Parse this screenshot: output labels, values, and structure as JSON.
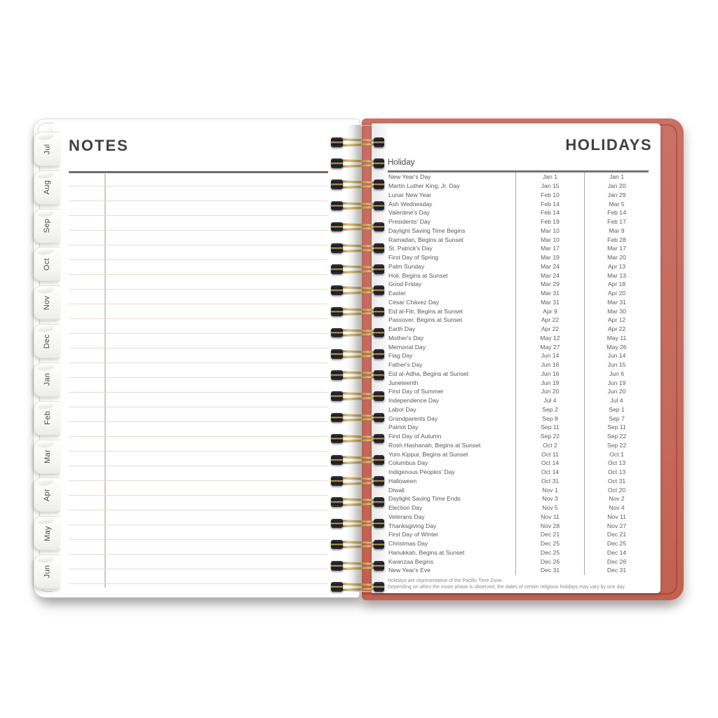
{
  "left_page": {
    "title": "NOTES",
    "tabs": [
      "Jul",
      "Aug",
      "Sep",
      "Oct",
      "Nov",
      "Dec",
      "Jan",
      "Feb",
      "Mar",
      "Apr",
      "May",
      "Jun"
    ]
  },
  "right_page": {
    "title": "HOLIDAYS",
    "column_header": "Holiday",
    "rows": [
      [
        "New Year's Day",
        "Jan 1",
        "Jan 1"
      ],
      [
        "Martin Luther King, Jr. Day",
        "Jan 15",
        "Jan 20"
      ],
      [
        "Lunar New Year",
        "Feb 10",
        "Jan 29"
      ],
      [
        "Ash Wednesday",
        "Feb 14",
        "Mar 5"
      ],
      [
        "Valentine's Day",
        "Feb 14",
        "Feb 14"
      ],
      [
        "Presidents' Day",
        "Feb 19",
        "Feb 17"
      ],
      [
        "Daylight Saving Time Begins",
        "Mar 10",
        "Mar 9"
      ],
      [
        "Ramadan, Begins at Sunset",
        "Mar 10",
        "Feb 28"
      ],
      [
        "St. Patrick's Day",
        "Mar 17",
        "Mar 17"
      ],
      [
        "First Day of Spring",
        "Mar 19",
        "Mar 20"
      ],
      [
        "Palm Sunday",
        "Mar 24",
        "Apr 13"
      ],
      [
        "Holi, Begins at Sunset",
        "Mar 24",
        "Mar 13"
      ],
      [
        "Good Friday",
        "Mar 29",
        "Apr 18"
      ],
      [
        "Easter",
        "Mar 31",
        "Apr 20"
      ],
      [
        "César Chávez Day",
        "Mar 31",
        "Mar 31"
      ],
      [
        "Eid al-Fitr, Begins at Sunset",
        "Apr 9",
        "Mar 30"
      ],
      [
        "Passover, Begins at Sunset",
        "Apr 22",
        "Apr 12"
      ],
      [
        "Earth Day",
        "Apr 22",
        "Apr 22"
      ],
      [
        "Mother's Day",
        "May 12",
        "May 11"
      ],
      [
        "Memorial Day",
        "May 27",
        "May 26"
      ],
      [
        "Flag Day",
        "Jun 14",
        "Jun 14"
      ],
      [
        "Father's Day",
        "Jun 16",
        "Jun 15"
      ],
      [
        "Eid al-Adha, Begins at Sunset",
        "Jun 16",
        "Jun 6"
      ],
      [
        "Juneteenth",
        "Jun 19",
        "Jun 19"
      ],
      [
        "First Day of Summer",
        "Jun 20",
        "Jun 20"
      ],
      [
        "Independence Day",
        "Jul 4",
        "Jul 4"
      ],
      [
        "Labor Day",
        "Sep 2",
        "Sep 1"
      ],
      [
        "Grandparents Day",
        "Sep 8",
        "Sep 7"
      ],
      [
        "Patriot Day",
        "Sep 11",
        "Sep 11"
      ],
      [
        "First Day of Autumn",
        "Sep 22",
        "Sep 22"
      ],
      [
        "Rosh Hashanah, Begins at Sunset",
        "Oct 2",
        "Sep 22"
      ],
      [
        "Yom Kippur, Begins at Sunset",
        "Oct 11",
        "Oct 1"
      ],
      [
        "Columbus Day",
        "Oct 14",
        "Oct 13"
      ],
      [
        "Indigenous Peoples' Day",
        "Oct 14",
        "Oct 13"
      ],
      [
        "Halloween",
        "Oct 31",
        "Oct 31"
      ],
      [
        "Diwali",
        "Nov 1",
        "Oct 20"
      ],
      [
        "Daylight Saving Time Ends",
        "Nov 3",
        "Nov 2"
      ],
      [
        "Election Day",
        "Nov 5",
        "Nov 4"
      ],
      [
        "Veterans Day",
        "Nov 11",
        "Nov 11"
      ],
      [
        "Thanksgiving Day",
        "Nov 28",
        "Nov 27"
      ],
      [
        "First Day of Winter",
        "Dec 21",
        "Dec 21"
      ],
      [
        "Christmas Day",
        "Dec 25",
        "Dec 25"
      ],
      [
        "Hanukkah, Begins at Sunset",
        "Dec 25",
        "Dec 14"
      ],
      [
        "Kwanzaa Begins",
        "Dec 26",
        "Dec 26"
      ],
      [
        "New Year's Eve",
        "Dec 31",
        "Dec 31"
      ]
    ],
    "footnotes": [
      "Holidays are representative of the Pacific Time Zone.",
      "Depending on when the moon phase is observed, the dates of certain religious holidays may vary by one day."
    ]
  },
  "binding": {
    "loop_count": 22
  },
  "colors": {
    "cover": "#c76a5e",
    "cover_seam": "#a85348",
    "wire_gold": "#b59750",
    "wire_cap": "#17171f",
    "ruled_line": "#ecdad6",
    "title_text": "#414143",
    "table_text": "#58585a"
  }
}
